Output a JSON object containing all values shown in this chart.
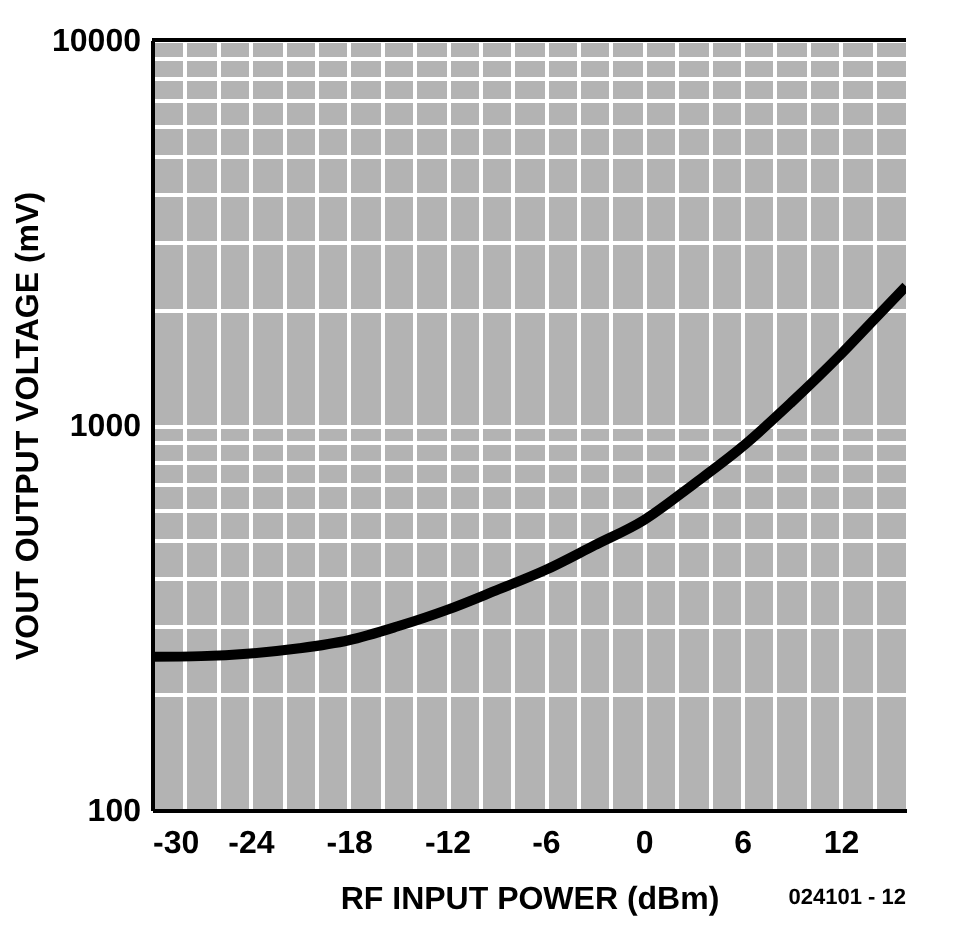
{
  "chart_data": {
    "type": "line",
    "xlabel": "RF INPUT POWER (dBm)",
    "ylabel": "VOUT OUTPUT VOLTAGE (mV)",
    "x": [
      -30,
      -27,
      -24,
      -21,
      -18,
      -15,
      -12,
      -9,
      -6,
      -3,
      0,
      3,
      6,
      9,
      12,
      14,
      16
    ],
    "series": [
      {
        "color": "#000000",
        "values": [
          250,
          251,
          255,
          263,
          276,
          300,
          331,
          372,
          420,
          487,
          566,
          700,
          877,
          1144,
          1522,
          1868,
          2292
        ]
      }
    ],
    "xlim": [
      -30,
      16
    ],
    "xticks": [
      -30,
      {
        "value": -28,
        "label": null
      },
      {
        "value": -26,
        "label": null
      },
      -24,
      {
        "value": -22,
        "label": null
      },
      {
        "value": -20,
        "label": null
      },
      -18,
      {
        "value": -16,
        "label": null
      },
      {
        "value": -14,
        "label": null
      },
      -12,
      {
        "value": -10,
        "label": null
      },
      {
        "value": -8,
        "label": null
      },
      -6,
      {
        "value": -4,
        "label": null
      },
      {
        "value": -2,
        "label": null
      },
      0,
      {
        "value": 2,
        "label": null
      },
      {
        "value": 4,
        "label": null
      },
      6,
      {
        "value": 8,
        "label": null
      },
      {
        "value": 10,
        "label": null
      },
      12,
      {
        "value": 14,
        "label": null
      }
    ],
    "ylim": [
      100,
      10000
    ],
    "yticks": [
      100,
      {
        "value": 200,
        "label": null
      },
      {
        "value": 300,
        "label": null
      },
      {
        "value": 400,
        "label": null
      },
      {
        "value": 500,
        "label": null
      },
      {
        "value": 600,
        "label": null
      },
      {
        "value": 700,
        "label": null
      },
      {
        "value": 800,
        "label": null
      },
      {
        "value": 900,
        "label": null
      },
      1000,
      {
        "value": 2000,
        "label": null
      },
      {
        "value": 3000,
        "label": null
      },
      {
        "value": 4000,
        "label": null
      },
      {
        "value": 5000,
        "label": null
      },
      {
        "value": 6000,
        "label": null
      },
      {
        "value": 7000,
        "label": null
      },
      {
        "value": 8000,
        "label": null
      },
      {
        "value": 9000,
        "label": null
      },
      10000
    ],
    "log": "y",
    "grid": true,
    "legend": false,
    "marker": "none",
    "line_style": "solid",
    "annotations": [
      "024101 - 12"
    ]
  }
}
